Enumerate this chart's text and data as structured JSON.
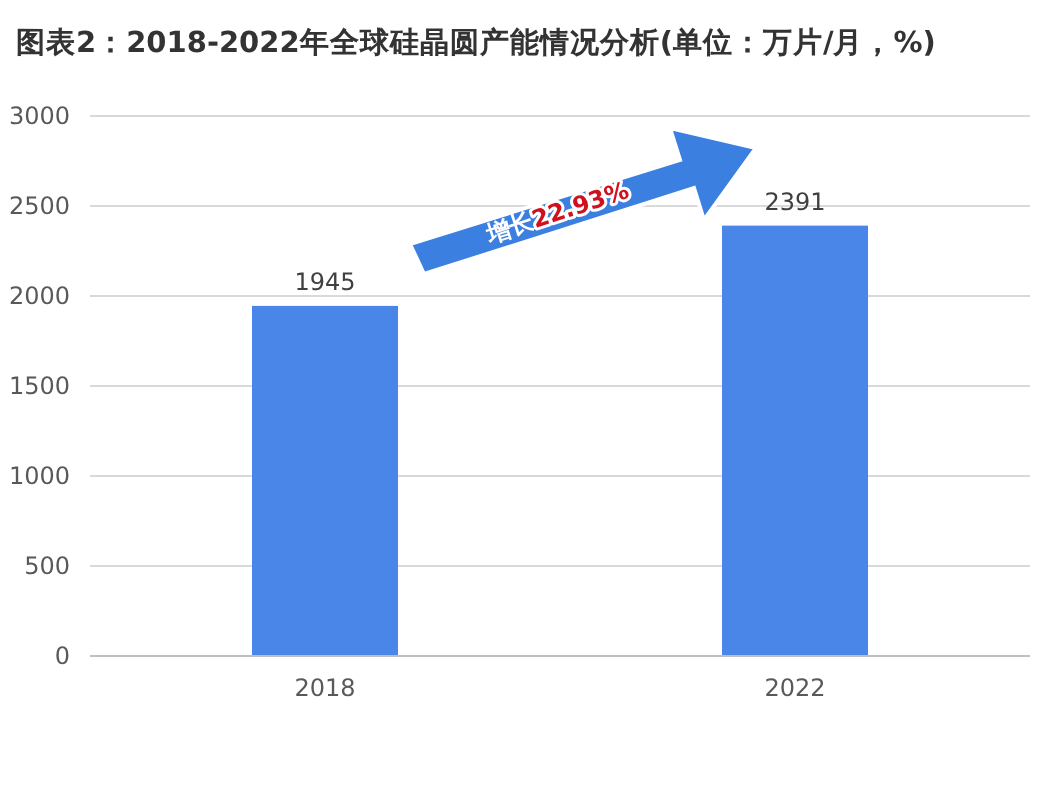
{
  "chart_data": {
    "type": "bar",
    "title": "图表2：2018-2022年全球硅晶圆产能情况分析(单位：万片/月，%)",
    "categories": [
      "2018",
      "2022"
    ],
    "values": [
      1945,
      2391
    ],
    "color": "#4a86e8",
    "ylim": [
      0,
      3000
    ],
    "yticks": [
      0,
      500,
      1000,
      1500,
      2000,
      2500,
      3000
    ],
    "grid": "y",
    "data_labels": true,
    "annotations": [
      "增长22.93%"
    ]
  }
}
